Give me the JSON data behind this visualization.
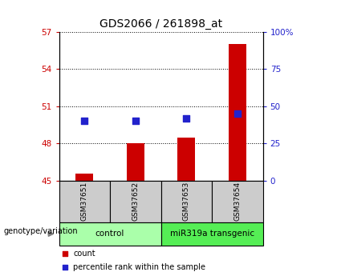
{
  "title": "GDS2066 / 261898_at",
  "samples": [
    "GSM37651",
    "GSM37652",
    "GSM37653",
    "GSM37654"
  ],
  "group_labels": [
    "control",
    "miR319a transgenic"
  ],
  "counts": [
    45.6,
    48.0,
    48.5,
    56.0
  ],
  "percentile_ranks": [
    40,
    40,
    42,
    45
  ],
  "ylim_left": [
    45,
    57
  ],
  "yticks_left": [
    45,
    48,
    51,
    54,
    57
  ],
  "ylim_right": [
    0,
    100
  ],
  "yticks_right": [
    0,
    25,
    50,
    75,
    100
  ],
  "bar_color": "#cc0000",
  "dot_color": "#2222cc",
  "bg_sample_row": "#cccccc",
  "bg_control": "#aaffaa",
  "bg_transgenic": "#55ee55",
  "bar_width": 0.35,
  "dot_size": 28,
  "ylabel_left_color": "#cc0000",
  "ylabel_right_color": "#2222cc",
  "title_fontsize": 10,
  "tick_fontsize": 7.5,
  "sample_fontsize": 6.5,
  "group_fontsize": 7.5,
  "legend_fontsize": 7,
  "genotype_label_fontsize": 7
}
